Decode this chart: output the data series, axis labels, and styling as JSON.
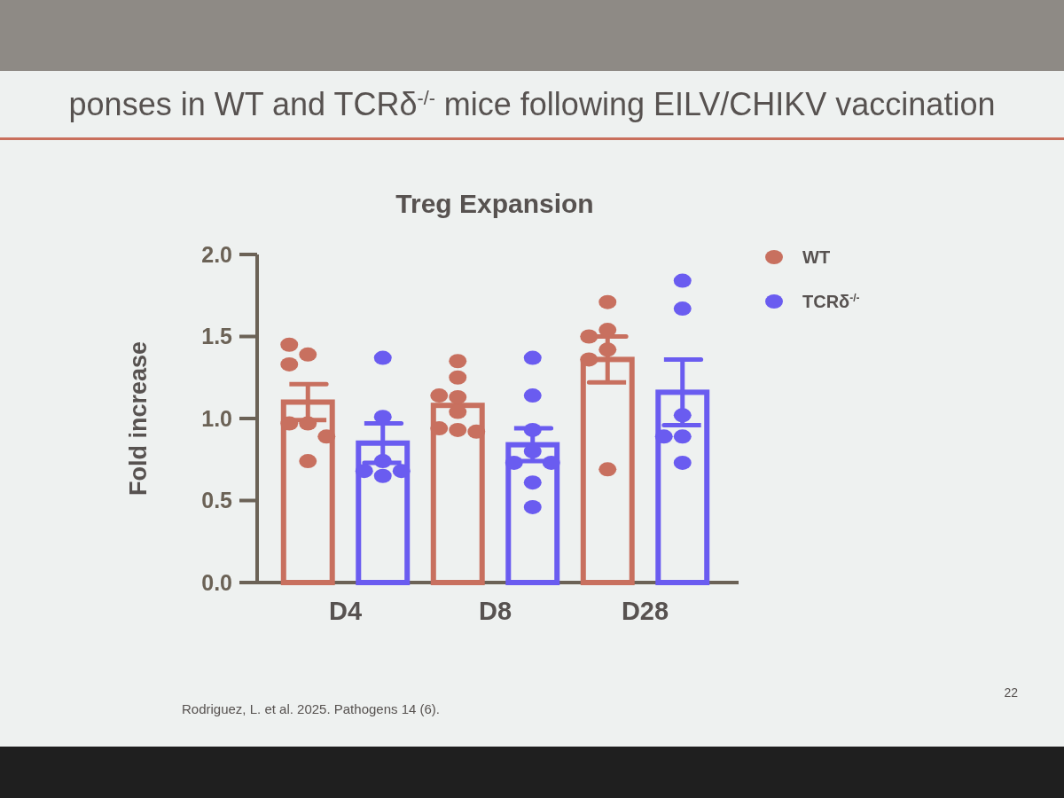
{
  "chart_data": {
    "type": "bar",
    "title": "ponses in WT and TCRδ$^{-/-}$ mice following EILV/CHIKV vaccination",
    "subtitle": "Treg Expansion",
    "ylabel": "Fold increase",
    "categories": [
      "D4",
      "D8",
      "D28"
    ],
    "series": [
      {
        "name": "WT",
        "color": "#c8705f",
        "values": [
          1.1,
          1.08,
          1.36
        ],
        "errors": [
          0.11,
          null,
          0.14
        ]
      },
      {
        "name": "TCRδ$^{-/-}$",
        "color": "#6a5cf0",
        "values": [
          0.85,
          0.84,
          1.16
        ],
        "errors": [
          0.12,
          0.1,
          0.2
        ]
      },
      {
        "type": "scatter",
        "color": "#c8705f",
        "x": [
          "D4",
          "D4",
          "D4",
          "D4",
          "D4",
          "D4",
          "D4",
          "D8",
          "D8",
          "D8",
          "D8",
          "D8",
          "D8",
          "D8",
          "D8",
          "D28",
          "D28",
          "D28",
          "D28",
          "D28",
          "D28"
        ],
        "values": [
          1.39,
          1.45,
          1.33,
          0.97,
          0.97,
          0.89,
          0.74,
          1.35,
          1.25,
          1.13,
          1.14,
          1.04,
          0.93,
          0.94,
          0.92,
          1.71,
          1.54,
          1.5,
          1.42,
          1.36,
          0.69
        ]
      },
      {
        "type": "scatter",
        "color": "#6a5cf0",
        "x": [
          "D4",
          "D4",
          "D4",
          "D4",
          "D4",
          "D4",
          "D8",
          "D8",
          "D8",
          "D8",
          "D8",
          "D8",
          "D8",
          "D8",
          "D28",
          "D28",
          "D28",
          "D28",
          "D28",
          "D28"
        ],
        "values": [
          1.37,
          1.01,
          0.74,
          0.68,
          0.65,
          0.68,
          1.37,
          1.14,
          0.93,
          0.8,
          0.73,
          0.73,
          0.61,
          0.46,
          1.84,
          1.67,
          1.02,
          0.89,
          0.89,
          0.73
        ]
      }
    ],
    "ylim": [
      0,
      2
    ],
    "yticks": [
      {
        "value": 0,
        "label": "0.0"
      },
      0.5,
      {
        "value": 1,
        "label": "1.0"
      },
      1.5,
      {
        "value": 2,
        "label": "2.0"
      }
    ],
    "legend": "top right",
    "marker": "circle",
    "annotations": [
      "Rodriguez, L. et al. 2025. Pathogens 14 (6).",
      "22"
    ]
  }
}
